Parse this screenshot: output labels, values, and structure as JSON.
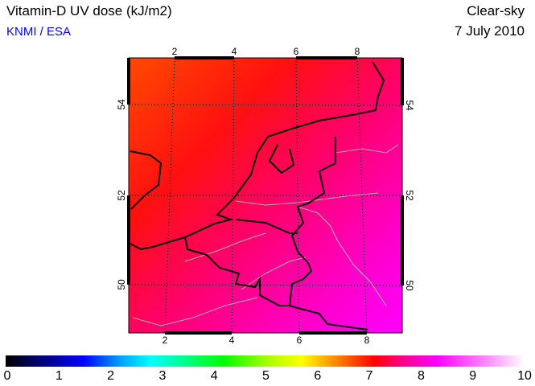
{
  "header": {
    "title": "Vitamin-D UV dose (kJ/m2)",
    "source": "KNMI / ESA",
    "condition": "Clear-sky",
    "date": "7 July 2010"
  },
  "map": {
    "lon_ticks_top": [
      "2",
      "4",
      "6",
      "8"
    ],
    "lon_ticks_bottom": [
      "2",
      "4",
      "6",
      "8"
    ],
    "lat_ticks": [
      "54",
      "52",
      "50"
    ]
  },
  "colorbar": {
    "labels": [
      "0",
      "1",
      "2",
      "3",
      "4",
      "5",
      "6",
      "7",
      "8",
      "9",
      "10"
    ],
    "min": 0,
    "max": 10
  }
}
